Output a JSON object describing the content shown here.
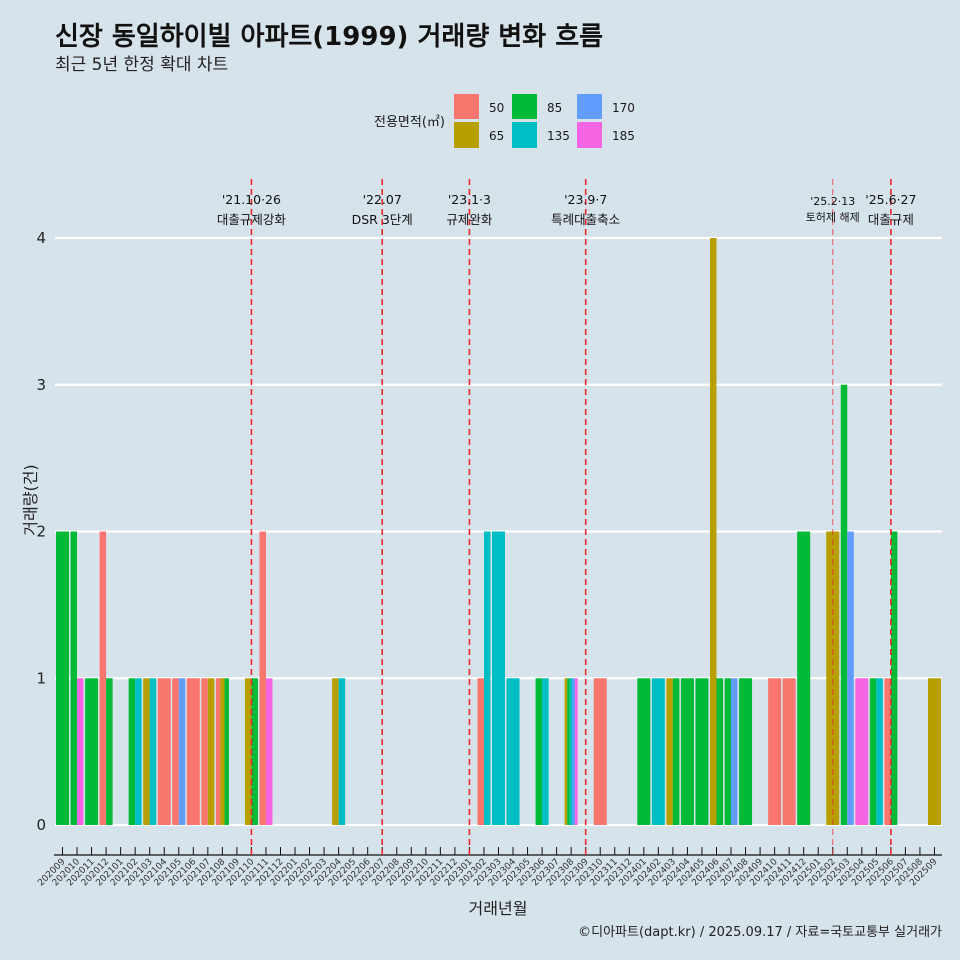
{
  "chart_data": {
    "type": "bar",
    "title": "신장 동일하이빌 아파트(1999) 거래량 변화 흐름",
    "subtitle": "최근 5년 한정 확대 차트",
    "xlabel": "거래년월",
    "ylabel": "거래량(건)",
    "caption": "©디아파트(dapt.kr) / 2025.09.17 / 자료=국토교통부 실거래가",
    "ylim": [
      0,
      4
    ],
    "yticks": [
      "0",
      "1",
      "2",
      "3",
      "4"
    ],
    "grid": "horizontal",
    "position": "dodge",
    "legend": {
      "title": "전용면적(㎡)",
      "placement": "top",
      "items": [
        {
          "label": "50",
          "color": "#F8766D"
        },
        {
          "label": "65",
          "color": "#B79F00"
        },
        {
          "label": "85",
          "color": "#00BA38"
        },
        {
          "label": "135",
          "color": "#00BFC4"
        },
        {
          "label": "170",
          "color": "#619CFF"
        },
        {
          "label": "185",
          "color": "#F564E3"
        }
      ]
    },
    "categories": [
      "202009",
      "202010",
      "202011",
      "202012",
      "202101",
      "202102",
      "202103",
      "202104",
      "202105",
      "202106",
      "202107",
      "202108",
      "202109",
      "202110",
      "202111",
      "202112",
      "202201",
      "202202",
      "202203",
      "202204",
      "202205",
      "202206",
      "202207",
      "202208",
      "202209",
      "202210",
      "202211",
      "202212",
      "202301",
      "202302",
      "202303",
      "202304",
      "202305",
      "202306",
      "202307",
      "202308",
      "202309",
      "202310",
      "202311",
      "202312",
      "202401",
      "202402",
      "202403",
      "202404",
      "202405",
      "202406",
      "202407",
      "202408",
      "202409",
      "202410",
      "202411",
      "202412",
      "202501",
      "202502",
      "202503",
      "202504",
      "202505",
      "202506",
      "202507",
      "202508",
      "202509"
    ],
    "records": [
      {
        "month": "202009",
        "area": "85",
        "count": 2
      },
      {
        "month": "202010",
        "area": "85",
        "count": 2
      },
      {
        "month": "202010",
        "area": "185",
        "count": 1
      },
      {
        "month": "202011",
        "area": "85",
        "count": 1
      },
      {
        "month": "202012",
        "area": "50",
        "count": 2
      },
      {
        "month": "202012",
        "area": "85",
        "count": 1
      },
      {
        "month": "202102",
        "area": "85",
        "count": 1
      },
      {
        "month": "202102",
        "area": "135",
        "count": 1
      },
      {
        "month": "202103",
        "area": "65",
        "count": 1
      },
      {
        "month": "202103",
        "area": "135",
        "count": 1
      },
      {
        "month": "202104",
        "area": "50",
        "count": 1
      },
      {
        "month": "202105",
        "area": "50",
        "count": 1
      },
      {
        "month": "202105",
        "area": "170",
        "count": 1
      },
      {
        "month": "202106",
        "area": "50",
        "count": 1
      },
      {
        "month": "202107",
        "area": "50",
        "count": 1
      },
      {
        "month": "202107",
        "area": "65",
        "count": 1
      },
      {
        "month": "202108",
        "area": "50",
        "count": 1
      },
      {
        "month": "202108",
        "area": "65",
        "count": 1
      },
      {
        "month": "202108",
        "area": "85",
        "count": 1
      },
      {
        "month": "202110",
        "area": "65",
        "count": 1
      },
      {
        "month": "202110",
        "area": "85",
        "count": 1
      },
      {
        "month": "202111",
        "area": "50",
        "count": 2
      },
      {
        "month": "202111",
        "area": "185",
        "count": 1
      },
      {
        "month": "202204",
        "area": "65",
        "count": 1
      },
      {
        "month": "202204",
        "area": "135",
        "count": 1
      },
      {
        "month": "202302",
        "area": "50",
        "count": 1
      },
      {
        "month": "202302",
        "area": "135",
        "count": 2
      },
      {
        "month": "202303",
        "area": "135",
        "count": 2
      },
      {
        "month": "202304",
        "area": "135",
        "count": 1
      },
      {
        "month": "202306",
        "area": "85",
        "count": 1
      },
      {
        "month": "202306",
        "area": "135",
        "count": 1
      },
      {
        "month": "202308",
        "area": "65",
        "count": 1
      },
      {
        "month": "202308",
        "area": "85",
        "count": 1
      },
      {
        "month": "202308",
        "area": "135",
        "count": 1
      },
      {
        "month": "202308",
        "area": "170",
        "count": 1
      },
      {
        "month": "202308",
        "area": "185",
        "count": 1
      },
      {
        "month": "202310",
        "area": "50",
        "count": 1
      },
      {
        "month": "202401",
        "area": "85",
        "count": 1
      },
      {
        "month": "202402",
        "area": "135",
        "count": 1
      },
      {
        "month": "202403",
        "area": "65",
        "count": 1
      },
      {
        "month": "202403",
        "area": "85",
        "count": 1
      },
      {
        "month": "202404",
        "area": "85",
        "count": 1
      },
      {
        "month": "202405",
        "area": "85",
        "count": 1
      },
      {
        "month": "202406",
        "area": "65",
        "count": 4
      },
      {
        "month": "202406",
        "area": "85",
        "count": 1
      },
      {
        "month": "202407",
        "area": "85",
        "count": 1
      },
      {
        "month": "202407",
        "area": "170",
        "count": 1
      },
      {
        "month": "202408",
        "area": "85",
        "count": 1
      },
      {
        "month": "202410",
        "area": "50",
        "count": 1
      },
      {
        "month": "202411",
        "area": "50",
        "count": 1
      },
      {
        "month": "202412",
        "area": "85",
        "count": 2
      },
      {
        "month": "202502",
        "area": "65",
        "count": 2
      },
      {
        "month": "202503",
        "area": "85",
        "count": 3
      },
      {
        "month": "202503",
        "area": "170",
        "count": 2
      },
      {
        "month": "202504",
        "area": "185",
        "count": 1
      },
      {
        "month": "202505",
        "area": "85",
        "count": 1
      },
      {
        "month": "202505",
        "area": "135",
        "count": 1
      },
      {
        "month": "202506",
        "area": "50",
        "count": 1
      },
      {
        "month": "202506",
        "area": "85",
        "count": 2
      },
      {
        "month": "202509",
        "area": "65",
        "count": 1
      }
    ],
    "annotations": [
      {
        "month": "202110",
        "date": "'21.10·26",
        "label": "대출규제강화"
      },
      {
        "month": "202207",
        "date": "'22.07",
        "label": "DSR 3단계"
      },
      {
        "month": "202301",
        "date": "'23.1·3",
        "label": "규제완화"
      },
      {
        "month": "202309",
        "date": "'23.9·7",
        "label": "특례대출축소"
      },
      {
        "month": "202502",
        "date": "'25.2·13",
        "label": "토허제 해제"
      },
      {
        "month": "202506",
        "date": "'25.6·27",
        "label": "대출규제"
      }
    ]
  }
}
